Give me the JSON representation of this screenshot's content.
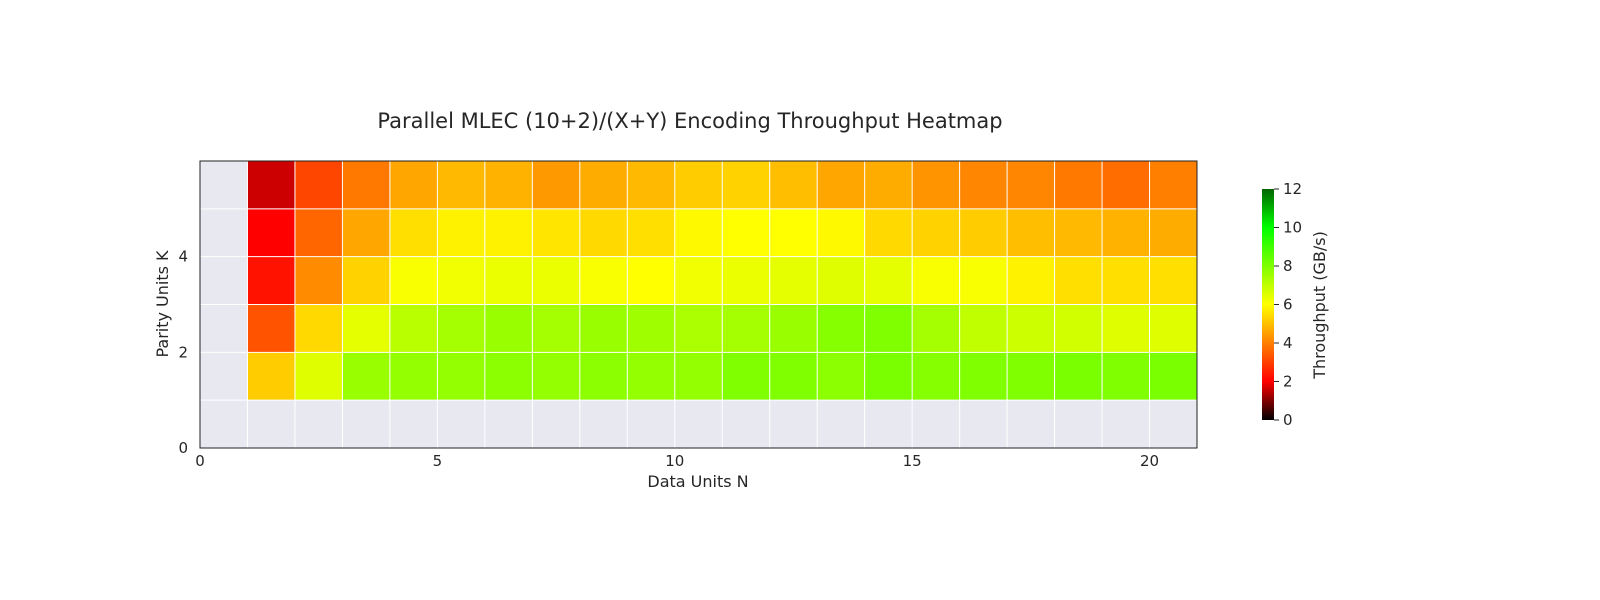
{
  "chart_data": {
    "type": "heatmap",
    "title": "Parallel MLEC (10+2)/(X+Y) Encoding Throughput Heatmap",
    "xlabel": "Data Units N",
    "ylabel": "Parity Units K",
    "colorbar_label": "Throughput (GB/s)",
    "xlim": [
      0,
      21
    ],
    "ylim": [
      0,
      6
    ],
    "x_ticks": [
      0,
      5,
      10,
      15,
      20
    ],
    "y_ticks": [
      0,
      2,
      4
    ],
    "colorbar_range": [
      0,
      12
    ],
    "colorbar_ticks": [
      0,
      2,
      4,
      6,
      8,
      10,
      12
    ],
    "colormap": [
      {
        "v": 0,
        "color": "#000000"
      },
      {
        "v": 2,
        "color": "#ff0000"
      },
      {
        "v": 6,
        "color": "#ffff00"
      },
      {
        "v": 10,
        "color": "#00ff00"
      },
      {
        "v": 12,
        "color": "#006400"
      }
    ],
    "missing_color": "#e8e9f0",
    "grid": "white cell borders",
    "x": [
      1,
      2,
      3,
      4,
      5,
      6,
      7,
      8,
      9,
      10,
      11,
      12,
      13,
      14,
      15,
      16,
      17,
      18,
      19,
      20
    ],
    "rows": [
      {
        "k": 1,
        "values": [
          5.2,
          6.5,
          7.6,
          7.7,
          7.7,
          7.8,
          7.7,
          7.8,
          7.7,
          7.7,
          8.0,
          8.0,
          7.8,
          8.1,
          7.9,
          8.0,
          8.0,
          8.1,
          8.0,
          8.1
        ]
      },
      {
        "k": 2,
        "values": [
          3.3,
          5.4,
          6.4,
          7.1,
          7.4,
          7.6,
          7.4,
          7.6,
          7.5,
          7.3,
          7.4,
          7.6,
          7.9,
          8.0,
          7.4,
          7.0,
          6.8,
          6.7,
          6.5,
          6.5
        ]
      },
      {
        "k": 3,
        "values": [
          2.3,
          4.2,
          5.3,
          6.1,
          6.2,
          6.3,
          6.3,
          6.1,
          6.0,
          6.2,
          6.3,
          6.4,
          6.5,
          6.4,
          6.1,
          6.1,
          5.8,
          5.5,
          5.5,
          5.5
        ]
      },
      {
        "k": 4,
        "values": [
          2.0,
          3.6,
          4.6,
          5.5,
          5.8,
          5.8,
          5.6,
          5.4,
          5.5,
          5.9,
          6.0,
          6.0,
          5.9,
          5.4,
          5.3,
          5.2,
          5.0,
          4.9,
          4.8,
          4.7
        ]
      },
      {
        "k": 5,
        "values": [
          1.6,
          3.1,
          3.9,
          4.6,
          4.9,
          4.8,
          4.4,
          4.7,
          4.9,
          5.2,
          5.3,
          5.0,
          4.6,
          4.7,
          4.3,
          4.1,
          4.1,
          3.9,
          3.7,
          4.0
        ]
      }
    ]
  }
}
